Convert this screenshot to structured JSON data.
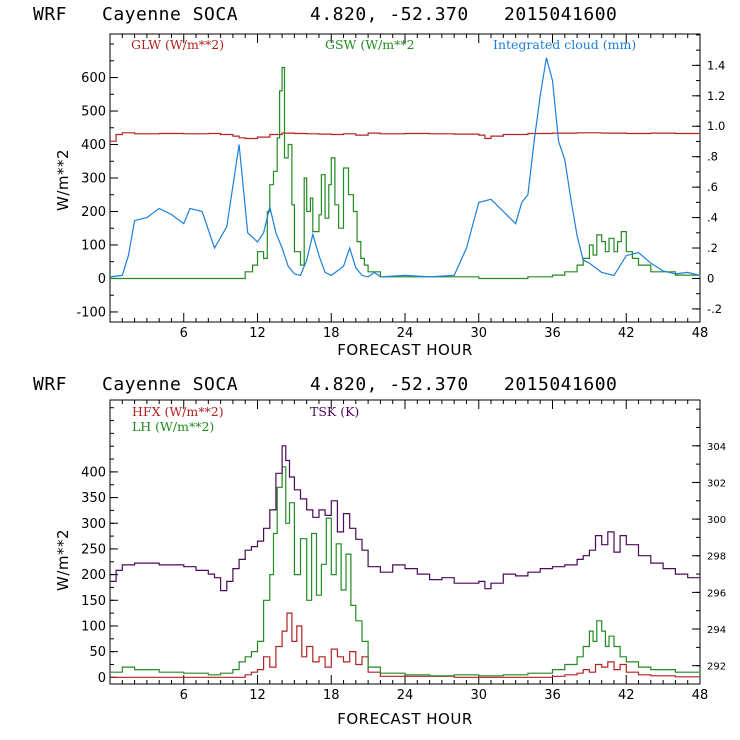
{
  "chart_data": [
    {
      "type": "line",
      "header": {
        "model": "WRF",
        "station": "Cayenne SOCA",
        "coords": "4.820, -52.370",
        "run": "2015041600"
      },
      "xlabel": "FORECAST HOUR",
      "ylabel": "W/m**2",
      "xlim": [
        0,
        48
      ],
      "ylim": [
        -130,
        730
      ],
      "y2lim": [
        -0.286,
        1.606
      ],
      "x_ticks": [
        6,
        12,
        18,
        24,
        30,
        36,
        42,
        48
      ],
      "y_ticks": [
        -100,
        0,
        100,
        200,
        300,
        400,
        500,
        600
      ],
      "y2_ticks": [
        -0.2,
        0,
        0.2,
        0.4,
        0.6,
        0.8,
        1.0,
        1.2,
        1.4
      ],
      "y2_tick_labels": [
        "-.2",
        "0",
        ".2",
        ".4",
        ".6",
        ".8",
        "1.0",
        "1.2",
        "1.4"
      ],
      "series": [
        {
          "name": "GLW (W/m**2)",
          "color": "#b22222",
          "axis": "left",
          "step": true,
          "x": [
            0,
            0.5,
            1,
            2,
            4,
            6,
            8,
            9,
            10,
            10.5,
            11,
            12,
            13,
            14,
            15,
            16,
            17,
            18,
            19,
            20,
            21,
            22,
            24,
            26,
            28,
            30,
            30.5,
            31,
            32,
            34,
            36,
            38,
            40,
            42,
            44,
            46,
            48
          ],
          "y": [
            410,
            430,
            435,
            432,
            433,
            432,
            433,
            430,
            425,
            420,
            418,
            422,
            430,
            434,
            433,
            432,
            431,
            430,
            432,
            428,
            434,
            432,
            433,
            432,
            431,
            428,
            418,
            425,
            430,
            433,
            434,
            435,
            434,
            433,
            434,
            433,
            432
          ]
        },
        {
          "name": "GSW (W/m**2",
          "color": "#228b22",
          "axis": "left",
          "step": true,
          "x": [
            0,
            9,
            10,
            11,
            11.6,
            12,
            12.5,
            12.8,
            13,
            13.3,
            13.6,
            13.8,
            14,
            14.2,
            14.5,
            14.8,
            15,
            15.5,
            15.8,
            16,
            16.3,
            16.5,
            17,
            17.2,
            17.5,
            17.8,
            18,
            18.3,
            18.6,
            19,
            19.4,
            19.8,
            20.1,
            20.4,
            20.7,
            21,
            22,
            30,
            34,
            36,
            37,
            38,
            38.5,
            39,
            39.3,
            39.6,
            40,
            40.3,
            40.6,
            41,
            41.3,
            41.6,
            42,
            42.5,
            43,
            44,
            46,
            48
          ],
          "y": [
            0,
            0,
            0,
            20,
            40,
            80,
            60,
            200,
            280,
            320,
            420,
            560,
            630,
            360,
            400,
            220,
            80,
            40,
            300,
            200,
            240,
            140,
            190,
            310,
            180,
            280,
            360,
            220,
            150,
            330,
            250,
            200,
            110,
            60,
            40,
            20,
            5,
            0,
            5,
            10,
            20,
            40,
            60,
            100,
            70,
            130,
            110,
            80,
            120,
            80,
            110,
            140,
            80,
            60,
            40,
            20,
            10,
            5
          ]
        },
        {
          "name": "Integrated cloud (mm)",
          "color": "#1e7fd8",
          "axis": "right",
          "step": false,
          "x": [
            0,
            1,
            1.5,
            2,
            3,
            4,
            5,
            6,
            6.5,
            7.5,
            8.5,
            9.5,
            10.5,
            11.2,
            12,
            12.5,
            13,
            13.5,
            14,
            14.5,
            15,
            15.5,
            16,
            16.5,
            17,
            17.5,
            18,
            18.5,
            19,
            19.5,
            20,
            20.5,
            21,
            21.5,
            22,
            24,
            26,
            28,
            29,
            30,
            31,
            32,
            32.5,
            33,
            33.5,
            34,
            34.5,
            35,
            35.5,
            36,
            36.5,
            37,
            37.5,
            38,
            38.5,
            39,
            40,
            41,
            42,
            43,
            44,
            45,
            46,
            47,
            48
          ],
          "y": [
            0.01,
            0.02,
            0.15,
            0.38,
            0.4,
            0.46,
            0.42,
            0.36,
            0.46,
            0.44,
            0.2,
            0.34,
            0.88,
            0.3,
            0.24,
            0.3,
            0.47,
            0.3,
            0.2,
            0.08,
            0.03,
            0.02,
            0.12,
            0.29,
            0.15,
            0.04,
            0.02,
            0.05,
            0.08,
            0.2,
            0.07,
            0.02,
            0.01,
            0.04,
            0.01,
            0.02,
            0.01,
            0.02,
            0.2,
            0.5,
            0.52,
            0.44,
            0.4,
            0.36,
            0.5,
            0.55,
            0.9,
            1.2,
            1.45,
            1.3,
            0.9,
            0.78,
            0.52,
            0.28,
            0.12,
            0.1,
            0.04,
            0.02,
            0.15,
            0.17,
            0.1,
            0.05,
            0.03,
            0.04,
            0.02
          ]
        }
      ]
    },
    {
      "type": "line",
      "header": {
        "model": "WRF",
        "station": "Cayenne SOCA",
        "coords": "4.820, -52.370",
        "run": "2015041600"
      },
      "xlabel": "FORECAST HOUR",
      "ylabel": "W/m**2",
      "xlim": [
        0,
        48
      ],
      "ylim": [
        -13,
        540
      ],
      "y2lim": [
        291.0,
        306.5
      ],
      "x_ticks": [
        6,
        12,
        18,
        24,
        30,
        36,
        42,
        48
      ],
      "y_ticks": [
        0,
        50,
        100,
        150,
        200,
        250,
        300,
        350,
        400
      ],
      "y2_ticks": [
        292,
        294,
        296,
        298,
        300,
        302,
        304
      ],
      "y2_tick_labels": [
        "292",
        "294",
        "296",
        "298",
        "300",
        "302",
        "304"
      ],
      "series": [
        {
          "name": "HFX (W/m**2)",
          "color": "#b22222",
          "axis": "left",
          "step": true,
          "x": [
            0,
            9,
            10,
            11,
            11.5,
            12,
            12.5,
            13,
            13.5,
            14,
            14.4,
            14.8,
            15.2,
            15.6,
            16,
            16.5,
            17,
            17.5,
            18,
            18.5,
            19,
            19.5,
            20,
            20.5,
            21,
            22,
            28,
            34,
            36,
            37,
            38,
            38.5,
            39,
            39.5,
            40,
            40.5,
            41,
            41.5,
            42,
            43,
            44,
            46,
            48
          ],
          "y": [
            0,
            0,
            0,
            5,
            10,
            15,
            40,
            20,
            60,
            90,
            125,
            70,
            100,
            40,
            60,
            30,
            40,
            20,
            55,
            40,
            30,
            50,
            25,
            40,
            10,
            2,
            0,
            0,
            2,
            5,
            8,
            15,
            10,
            25,
            20,
            30,
            15,
            25,
            10,
            5,
            3,
            1,
            0
          ]
        },
        {
          "name": "LH (W/m**2)",
          "color": "#228b22",
          "axis": "left",
          "step": true,
          "x": [
            0,
            1,
            2,
            4,
            6,
            8,
            9,
            10,
            10.5,
            11,
            11.5,
            12,
            12.5,
            13,
            13.3,
            13.6,
            14,
            14.3,
            14.6,
            15,
            15.5,
            16,
            16.4,
            16.8,
            17.2,
            17.6,
            18,
            18.4,
            18.8,
            19.2,
            19.6,
            20,
            20.5,
            21,
            22,
            24,
            26,
            28,
            30,
            32,
            34,
            36,
            37,
            38,
            38.5,
            39,
            39.3,
            39.6,
            40,
            40.3,
            40.6,
            41,
            41.5,
            42,
            43,
            44,
            46,
            48
          ],
          "y": [
            10,
            20,
            15,
            10,
            8,
            5,
            8,
            15,
            30,
            40,
            50,
            70,
            150,
            200,
            280,
            370,
            410,
            300,
            340,
            200,
            270,
            150,
            280,
            160,
            220,
            310,
            200,
            260,
            170,
            240,
            140,
            110,
            70,
            20,
            8,
            5,
            3,
            5,
            3,
            5,
            8,
            15,
            25,
            40,
            60,
            90,
            70,
            110,
            90,
            60,
            80,
            60,
            40,
            30,
            20,
            15,
            10,
            8
          ]
        },
        {
          "name": "TSK (K)",
          "color": "#4b0a5a",
          "axis": "right",
          "step": true,
          "x": [
            0,
            0.5,
            1,
            2,
            4,
            6,
            7,
            8,
            8.5,
            9,
            9.5,
            10,
            10.5,
            11,
            11.5,
            12,
            12.5,
            13,
            13.5,
            14,
            14.3,
            14.6,
            15,
            15.5,
            16,
            16.5,
            17,
            17.5,
            18,
            18.5,
            19,
            19.5,
            20,
            20.5,
            21,
            22,
            23,
            24,
            25,
            26,
            27,
            28,
            29,
            30,
            30.5,
            31,
            32,
            33,
            34,
            35,
            36,
            37,
            38,
            38.5,
            39,
            39.5,
            40,
            40.5,
            41,
            41.5,
            42,
            43,
            44,
            45,
            46,
            47,
            48
          ],
          "y": [
            296.6,
            297.2,
            297.5,
            297.6,
            297.5,
            297.4,
            297.2,
            297.0,
            296.8,
            296.1,
            296.6,
            297.3,
            297.8,
            298.3,
            298.5,
            298.8,
            299.5,
            300.5,
            302.5,
            304.0,
            303.2,
            302.3,
            301.6,
            301.1,
            300.5,
            300.1,
            300.5,
            300.2,
            301.0,
            299.3,
            300.3,
            299.5,
            298.9,
            298.3,
            297.4,
            297.1,
            297.5,
            297.3,
            297.0,
            296.7,
            296.8,
            296.5,
            296.5,
            296.6,
            296.2,
            296.5,
            297.0,
            296.9,
            297.1,
            297.3,
            297.4,
            297.5,
            297.8,
            298.0,
            298.3,
            299.1,
            298.6,
            299.3,
            298.2,
            299.1,
            298.6,
            298.0,
            297.6,
            297.3,
            297.0,
            296.8,
            296.7
          ]
        }
      ]
    }
  ]
}
